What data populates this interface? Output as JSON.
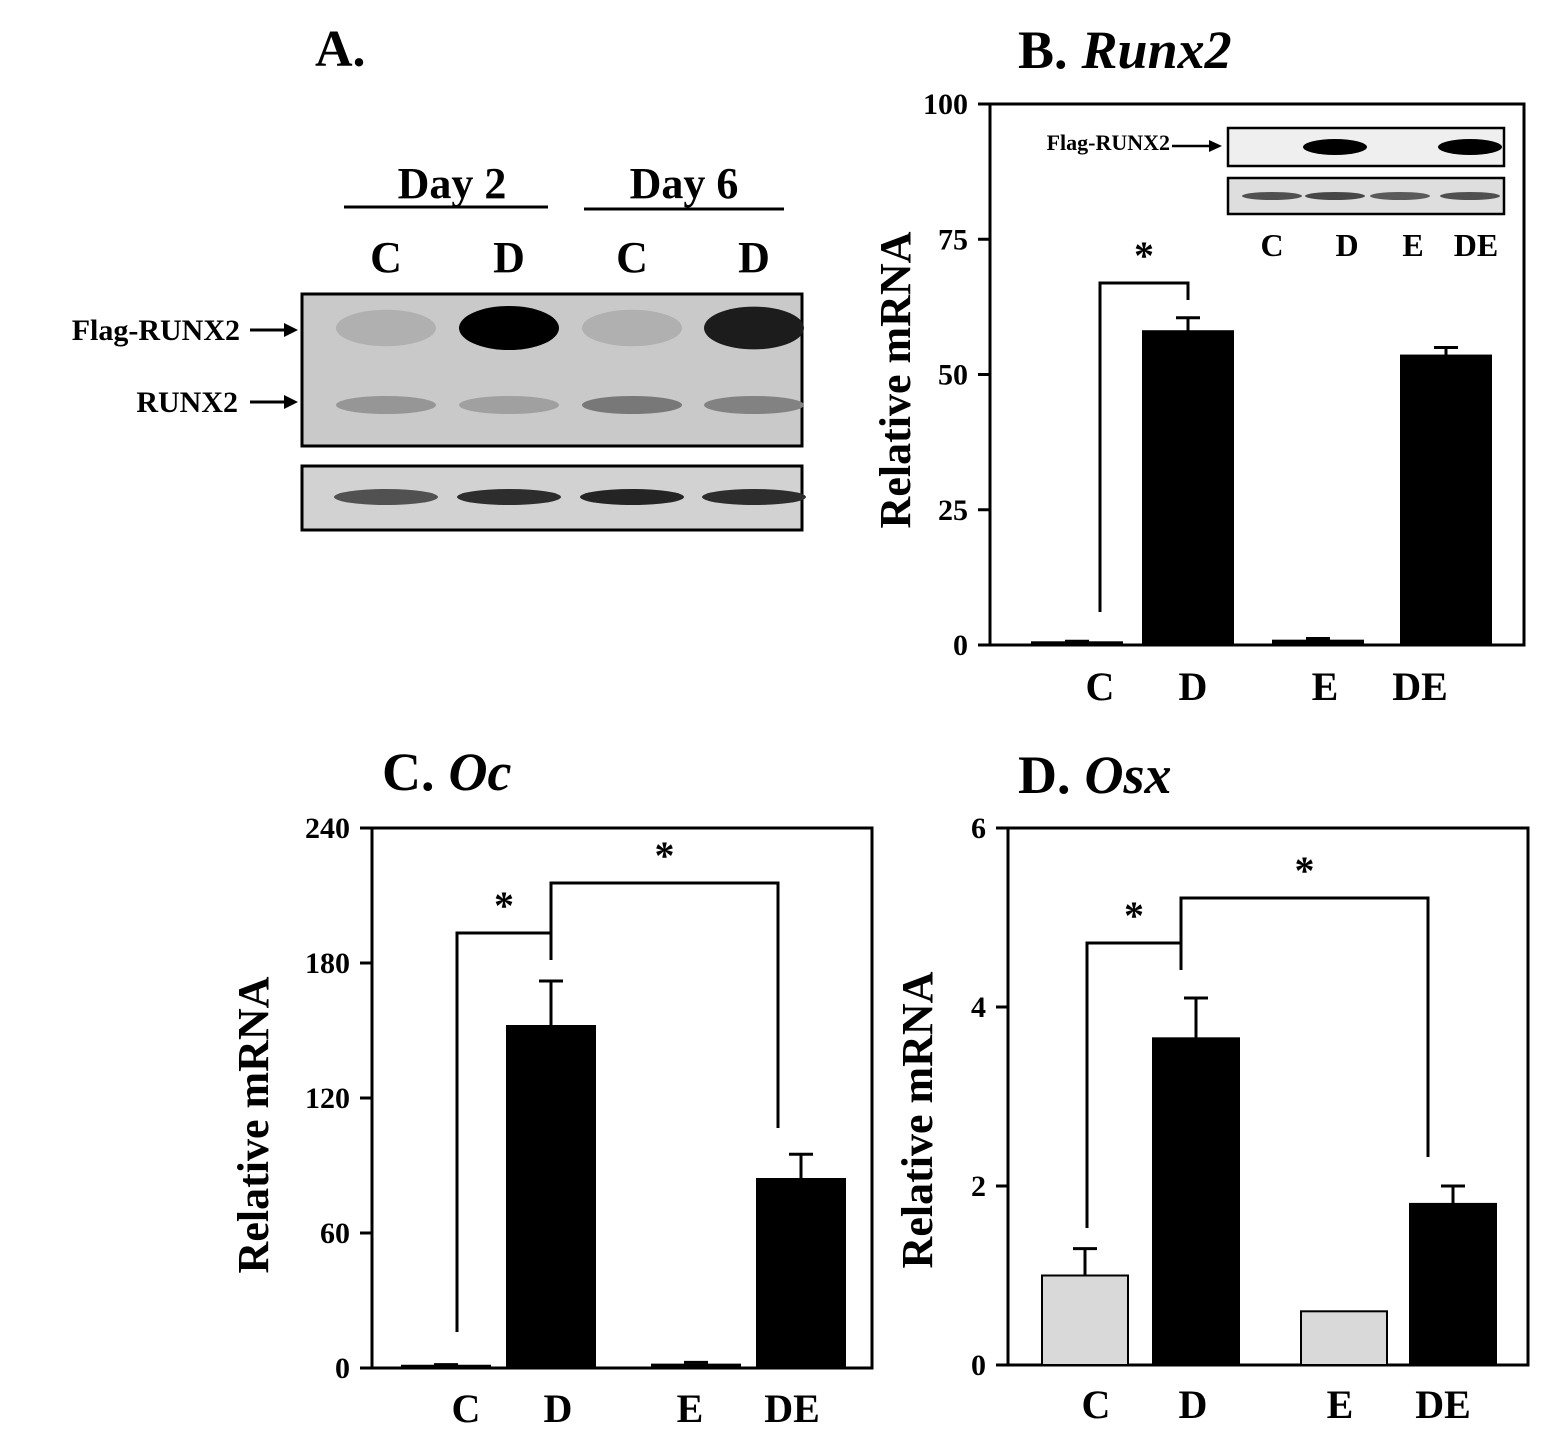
{
  "panel_a": {
    "letter": "A.",
    "groups": [
      {
        "label": "Day 2",
        "lanes": [
          "C",
          "D"
        ]
      },
      {
        "label": "Day 6",
        "lanes": [
          "C",
          "D"
        ]
      }
    ],
    "band_labels": [
      "Flag-RUNX2",
      "RUNX2"
    ],
    "flag_band_intensity": [
      0.05,
      1.0,
      0.05,
      0.85
    ],
    "runx2_band_intensity": [
      0.25,
      0.2,
      0.4,
      0.35
    ],
    "loading_band_intensity": [
      0.55,
      0.75,
      0.8,
      0.75
    ]
  },
  "chart_data": [
    {
      "type": "bar",
      "panel_letter": "B.",
      "gene": "Runx2",
      "ylabel": "Relative mRNA",
      "ylim": [
        0,
        100
      ],
      "yticks": [
        0,
        25,
        50,
        75,
        100
      ],
      "categories": [
        "C",
        "D",
        "E",
        "DE"
      ],
      "values": [
        0.5,
        58,
        0.8,
        53.5
      ],
      "errors": [
        0.2,
        2.5,
        0.4,
        1.5
      ],
      "bar_colors": [
        "#000000",
        "#000000",
        "#000000",
        "#000000"
      ],
      "significance": [
        {
          "from": "C",
          "to": "D",
          "label": "*"
        }
      ],
      "inset": {
        "band_label": "Flag-RUNX2",
        "lanes": [
          "C",
          "D",
          "E",
          "DE"
        ],
        "flag_band_intensity": [
          0.0,
          1.0,
          0.0,
          1.0
        ],
        "loading_band_intensity": [
          0.6,
          0.65,
          0.55,
          0.6
        ]
      }
    },
    {
      "type": "bar",
      "panel_letter": "C.",
      "gene": "Oc",
      "ylabel": "Relative mRNA",
      "ylim": [
        0,
        240
      ],
      "yticks": [
        0,
        60,
        120,
        180,
        240
      ],
      "categories": [
        "C",
        "D",
        "E",
        "DE"
      ],
      "values": [
        1,
        152,
        1.5,
        84
      ],
      "errors": [
        0.5,
        20,
        1,
        11
      ],
      "bar_colors": [
        "#000000",
        "#000000",
        "#000000",
        "#000000"
      ],
      "significance": [
        {
          "from": "C",
          "to": "D",
          "label": "*"
        },
        {
          "from": "D",
          "to": "DE",
          "label": "*"
        }
      ]
    },
    {
      "type": "bar",
      "panel_letter": "D.",
      "gene": "Osx",
      "ylabel": "Relative mRNA",
      "ylim": [
        0,
        6
      ],
      "yticks": [
        0,
        2,
        4,
        6
      ],
      "categories": [
        "C",
        "D",
        "E",
        "DE"
      ],
      "values": [
        1.0,
        3.65,
        0.6,
        1.8
      ],
      "errors": [
        0.3,
        0.45,
        0.0,
        0.2
      ],
      "bar_colors": [
        "#d9d9d9",
        "#000000",
        "#d9d9d9",
        "#000000"
      ],
      "significance": [
        {
          "from": "C",
          "to": "D",
          "label": "*"
        },
        {
          "from": "D",
          "to": "DE",
          "label": "*"
        }
      ]
    }
  ]
}
